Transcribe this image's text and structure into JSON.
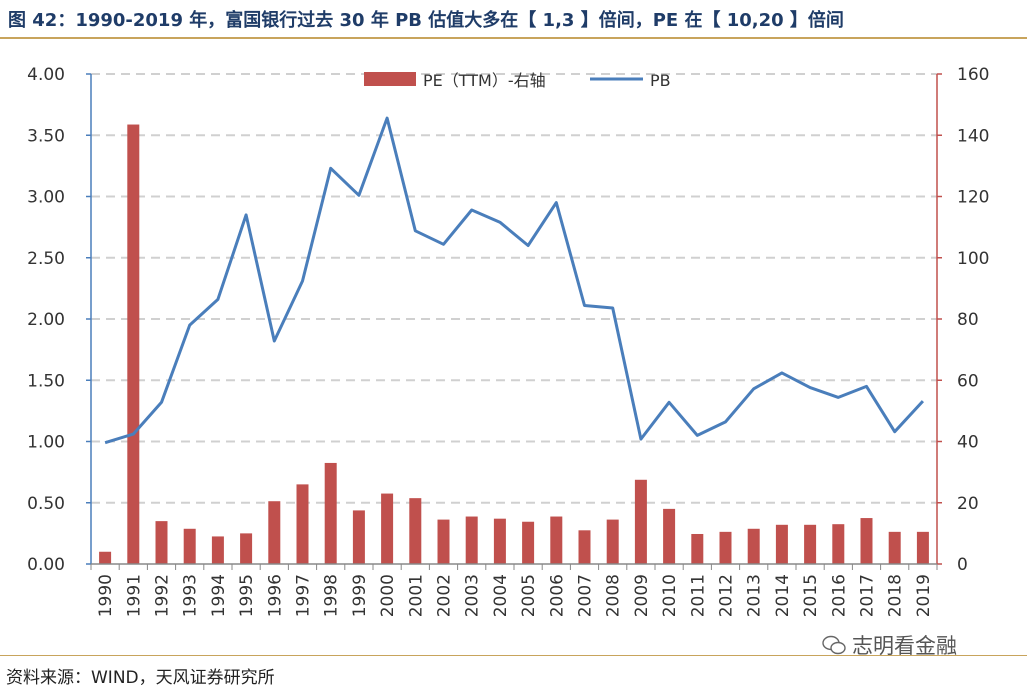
{
  "title": "图 42：1990-2019 年，富国银行过去 30 年 PB 估值大多在【 1,3 】倍间，PE 在【 10,20 】倍间",
  "source": "资料来源：WIND，天风证券研究所",
  "watermark": "志明看金融",
  "chart_data": {
    "type": "bar+line",
    "categories": [
      "1990",
      "1991",
      "1992",
      "1993",
      "1994",
      "1995",
      "1996",
      "1997",
      "1998",
      "1999",
      "2000",
      "2001",
      "2002",
      "2003",
      "2004",
      "2005",
      "2006",
      "2007",
      "2008",
      "2009",
      "2010",
      "2011",
      "2012",
      "2013",
      "2014",
      "2015",
      "2016",
      "2017",
      "2018",
      "2019"
    ],
    "series": [
      {
        "name": "PE（TTM）-右轴",
        "type": "bar",
        "axis": "right",
        "color": "#c0504d",
        "values": [
          4,
          143.5,
          14,
          11.5,
          9,
          10,
          20.5,
          26,
          33,
          17.5,
          23,
          21.5,
          14.5,
          15.5,
          14.8,
          13.8,
          15.5,
          11,
          14.5,
          27.5,
          18,
          9.8,
          10.5,
          11.5,
          12.8,
          12.8,
          13,
          15,
          10.5,
          10.5
        ]
      },
      {
        "name": "PB",
        "type": "line",
        "axis": "left",
        "color": "#4a7ebb",
        "values": [
          0.99,
          1.06,
          1.32,
          1.95,
          2.16,
          2.85,
          1.82,
          2.31,
          3.23,
          3.01,
          3.64,
          2.72,
          2.61,
          2.89,
          2.79,
          2.6,
          2.95,
          2.11,
          2.09,
          1.02,
          1.32,
          1.05,
          1.16,
          1.43,
          1.56,
          1.44,
          1.36,
          1.45,
          1.08,
          1.33
        ]
      }
    ],
    "y_left": {
      "min": 0,
      "max": 4,
      "ticks": [
        "0.00",
        "0.50",
        "1.00",
        "1.50",
        "2.00",
        "2.50",
        "3.00",
        "3.50",
        "4.00"
      ]
    },
    "y_right": {
      "min": 0,
      "max": 160,
      "ticks": [
        "0",
        "20",
        "40",
        "60",
        "80",
        "100",
        "120",
        "140",
        "160"
      ]
    },
    "grid": "horizontal dashed",
    "legend_position": "top-center"
  }
}
